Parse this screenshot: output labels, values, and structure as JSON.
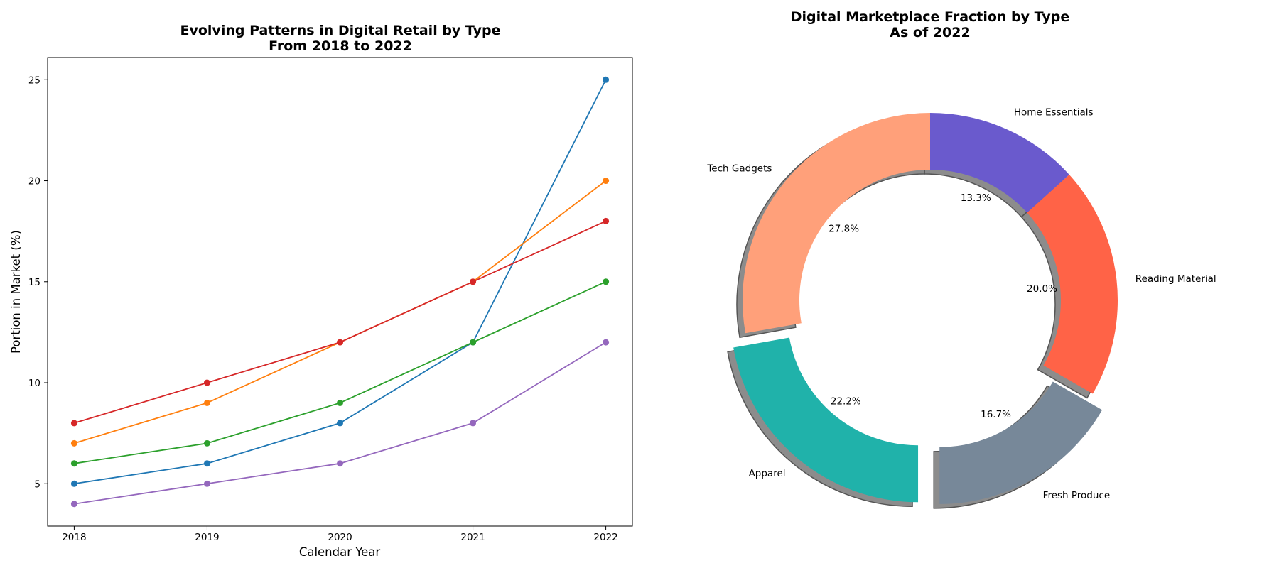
{
  "chart_data": [
    {
      "type": "line",
      "title": "Evolving Patterns in Digital Retail by Type\nFrom 2018 to 2022",
      "title_lines": [
        "Evolving Patterns in Digital Retail by Type",
        "From 2018 to 2022"
      ],
      "xlabel": "Calendar Year",
      "ylabel": "Portion in Market (%)",
      "x": [
        2018,
        2019,
        2020,
        2021,
        2022
      ],
      "x_tick_labels": [
        "2018",
        "2019",
        "2020",
        "2021",
        "2022"
      ],
      "y_ticks": [
        5,
        10,
        15,
        20,
        25
      ],
      "y_tick_labels": [
        "5",
        "10",
        "15",
        "20",
        "25"
      ],
      "ylim": [
        2.9,
        26.1
      ],
      "xlim": [
        2017.8,
        2022.2
      ],
      "grid": false,
      "series": [
        {
          "color": "#1f77b4",
          "values": [
            5,
            6,
            8,
            12,
            25
          ]
        },
        {
          "color": "#ff7f0e",
          "values": [
            7,
            9,
            12,
            15,
            20
          ]
        },
        {
          "color": "#2ca02c",
          "values": [
            6,
            7,
            9,
            12,
            15
          ]
        },
        {
          "color": "#d62728",
          "values": [
            8,
            10,
            12,
            15,
            18
          ]
        },
        {
          "color": "#9467bd",
          "values": [
            4,
            5,
            6,
            8,
            12
          ]
        }
      ]
    },
    {
      "type": "pie",
      "donut": true,
      "title": "Digital Marketplace Fraction by Type\nAs of 2022",
      "title_lines": [
        "Digital Marketplace Fraction by Type",
        "As of 2022"
      ],
      "start_angle": 90,
      "direction": "clockwise",
      "shadow": true,
      "slices": [
        {
          "label": "Home Essentials",
          "value": 13.3,
          "pct_label": "13.3%",
          "color": "#6a5acd",
          "explode": 0
        },
        {
          "label": "Reading Material",
          "value": 20.0,
          "pct_label": "20.0%",
          "color": "#ff6347",
          "explode": 0
        },
        {
          "label": "Fresh Produce",
          "value": 16.7,
          "pct_label": "16.7%",
          "color": "#778899",
          "explode": 0.1
        },
        {
          "label": "Apparel",
          "value": 22.2,
          "pct_label": "22.2%",
          "color": "#20b2aa",
          "explode": 0.1
        },
        {
          "label": "Tech Gadgets",
          "value": 27.8,
          "pct_label": "27.8%",
          "color": "#ffa07a",
          "explode": 0
        }
      ]
    }
  ]
}
